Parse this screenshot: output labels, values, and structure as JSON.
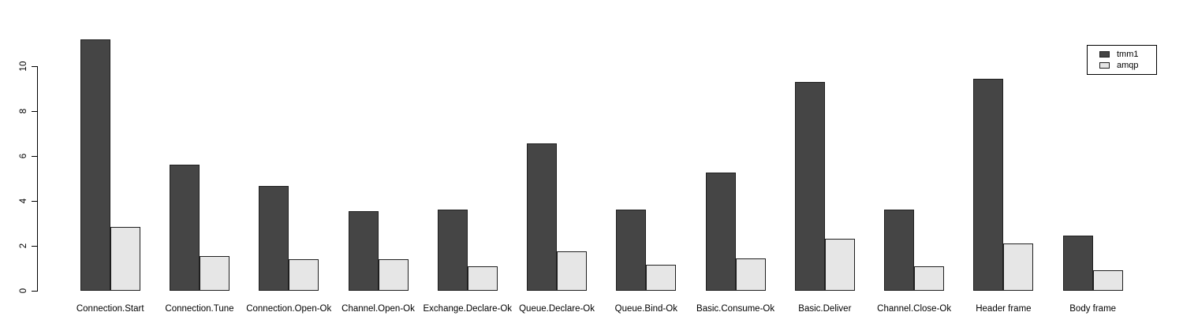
{
  "chart_data": {
    "type": "bar",
    "grouped": true,
    "title": "",
    "xlabel": "",
    "ylabel": "",
    "categories": [
      "Connection.Start",
      "Connection.Tune",
      "Connection.Open-Ok",
      "Channel.Open-Ok",
      "Exchange.Declare-Ok",
      "Queue.Declare-Ok",
      "Queue.Bind-Ok",
      "Basic.Consume-Ok",
      "Basic.Deliver",
      "Channel.Close-Ok",
      "Header frame",
      "Body frame"
    ],
    "series": [
      {
        "name": "tmm1",
        "color": "#454545",
        "values": [
          11.2,
          5.6,
          4.65,
          3.55,
          3.6,
          6.55,
          3.6,
          5.25,
          9.3,
          3.6,
          9.45,
          2.45
        ]
      },
      {
        "name": "amqp",
        "color": "#e6e6e6",
        "values": [
          2.85,
          1.55,
          1.4,
          1.4,
          1.1,
          1.75,
          1.15,
          1.45,
          2.3,
          1.1,
          2.1,
          0.9
        ]
      }
    ],
    "yticks": [
      0,
      2,
      4,
      6,
      8,
      10
    ],
    "ylim": [
      0,
      11.3
    ],
    "grid": false,
    "legend_position": "top-right",
    "bar_border_color": "#1f1f1f",
    "axis_color": "#000000",
    "background_color": "#ffffff"
  }
}
